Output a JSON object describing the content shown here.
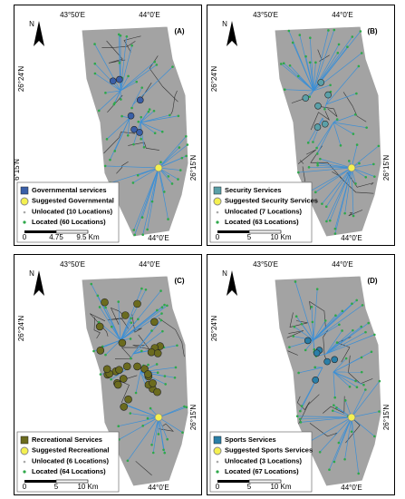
{
  "panels": [
    {
      "label": "(A)",
      "north": "N",
      "lon_top": [
        "43°50'E",
        "44°0'E"
      ],
      "lat_left": "26°24'N",
      "lat_left_lower": "6°15'N",
      "lat_right": "26°15'N",
      "lon_bottom": "44°0'E",
      "service_color": "#3a5fa8",
      "legend": [
        "Governmental services",
        "Suggested Governmental",
        "Unlocated (10 Locations)",
        "Located (60 Locations)"
      ],
      "scale": [
        "0",
        "4.75",
        "9.5 Km"
      ]
    },
    {
      "label": "(B)",
      "north": "N",
      "lon_top": [
        "43°50'E",
        "44°0'E"
      ],
      "lat_left": "26°24'N",
      "lat_right": "26°15'N",
      "lon_bottom": "44°0'E",
      "service_color": "#5aa0a8",
      "legend": [
        "Security Services",
        "Suggested Security Services",
        "Unlocated (7 Locations)",
        "Located (63 Locations)"
      ],
      "scale": [
        "0",
        "5",
        "10 Km"
      ]
    },
    {
      "label": "(C)",
      "north": "N",
      "lon_top": [
        "43°50'E",
        "44°0'E"
      ],
      "lat_left": "26°24'N",
      "lat_right": "26°15'N",
      "lon_bottom": "44°0'E",
      "service_color": "#6b6b1e",
      "legend": [
        "Recreational Services",
        "Suggested Recreational",
        "Unlocated (6 Locations)",
        "Located (64 Locations)"
      ],
      "scale": [
        "0",
        "5",
        "10 Km"
      ]
    },
    {
      "label": "(D)",
      "north": "N",
      "lon_top": [
        "43°50'E",
        "44°0'E"
      ],
      "lat_left": "26°24'N",
      "lat_right": "26°15'N",
      "lon_bottom": "44°0'E",
      "service_color": "#2a7fa8",
      "legend": [
        "Sports Services",
        "Suggested Sports Services",
        "Unlocated (3 Locations)",
        "Located (67 Locations)"
      ],
      "scale": [
        "0",
        "5",
        "10 Km"
      ]
    }
  ]
}
